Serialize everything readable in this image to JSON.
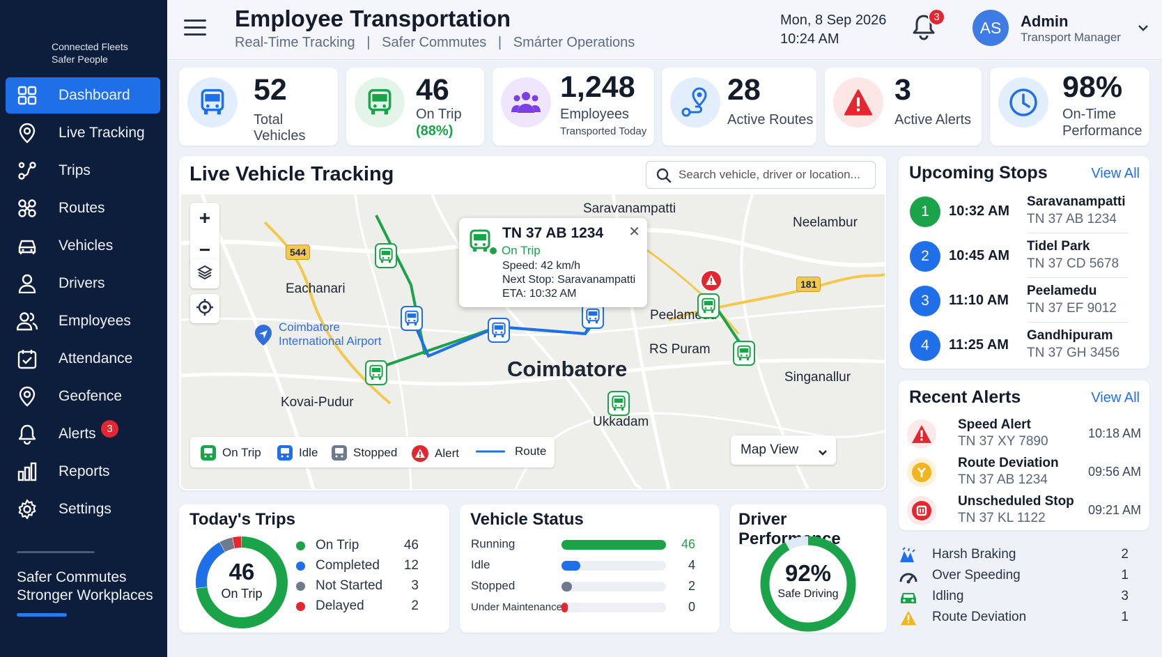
{
  "brand": {
    "line1": "Connected Fleets",
    "line2": "Safer People"
  },
  "sidebar": {
    "items": [
      {
        "label": "Dashboard",
        "icon": "dashboard-icon",
        "active": true
      },
      {
        "label": "Live Tracking",
        "icon": "location-pin-icon"
      },
      {
        "label": "Trips",
        "icon": "trips-icon"
      },
      {
        "label": "Routes",
        "icon": "routes-icon"
      },
      {
        "label": "Vehicles",
        "icon": "vehicle-icon"
      },
      {
        "label": "Drivers",
        "icon": "driver-icon"
      },
      {
        "label": "Employees",
        "icon": "employees-icon"
      },
      {
        "label": "Attendance",
        "icon": "attendance-icon"
      },
      {
        "label": "Geofence",
        "icon": "geofence-icon"
      },
      {
        "label": "Alerts",
        "icon": "bell-icon",
        "badge": "3"
      },
      {
        "label": "Reports",
        "icon": "reports-icon"
      },
      {
        "label": "Settings",
        "icon": "gear-icon"
      }
    ],
    "footer_line1": "Safer Commutes",
    "footer_line2": "Stronger Workplaces"
  },
  "header": {
    "title": "Employee Transportation",
    "subtitle": "Real-Time Tracking   |   Safer Commutes   |   Smárter Operations",
    "date": "Mon, 8 Sep 2026",
    "time": "10:24 AM",
    "notification_count": "3",
    "user_initials": "AS",
    "user_name": "Admin",
    "user_role": "Transport Manager"
  },
  "stats": [
    {
      "value": "52",
      "label": "Total Vehicles",
      "color": "#1f6fe8"
    },
    {
      "value": "46",
      "label": "On Trip",
      "sub": "(88%)",
      "color": "#1ba34a"
    },
    {
      "value": "1,248",
      "label": "Employees",
      "sub": "Transported Today",
      "color": "#7b3fe4"
    },
    {
      "value": "28",
      "label": "Active Routes",
      "color": "#1f6fe8"
    },
    {
      "value": "3",
      "label": "Active Alerts",
      "color": "#e3262f"
    },
    {
      "value": "98%",
      "label": "On-Time",
      "sub": "Performance",
      "color": "#1f6fe8"
    }
  ],
  "map_panel": {
    "title": "Live Vehicle Tracking",
    "search_placeholder": "Search vehicle, driver or location...",
    "places": [
      "Saravanampatti",
      "Neelambur",
      "Eachanari",
      "Peelamedu",
      "RS Puram",
      "Coimbatore",
      "Singanallur",
      "Kovai-Pudur",
      "Ukkadam"
    ],
    "airport_line1": "Coimbatore",
    "airport_line2": "International Airport",
    "road_badges": [
      "544",
      "181"
    ],
    "popup": {
      "vehicle": "TN 37 AB 1234",
      "status": "On Trip",
      "speed": "Speed: 42 km/h",
      "next_stop": "Next Stop: Saravanampatti",
      "eta": "ETA: 10:32 AM"
    },
    "legend": [
      "On Trip",
      "Idle",
      "Stopped",
      "Alert",
      "Route"
    ],
    "map_view_label": "Map View",
    "colors": {
      "on_trip": "#1ba34a",
      "idle": "#1f6fe8",
      "stopped": "#6f7a8c",
      "alert": "#e3262f"
    }
  },
  "upcoming_stops": {
    "title": "Upcoming Stops",
    "view_all": "View All",
    "items": [
      {
        "num": "1",
        "time": "10:32 AM",
        "place": "Saravanampatti",
        "vehicle": "TN 37 AB 1234",
        "color": "#1ba34a"
      },
      {
        "num": "2",
        "time": "10:45 AM",
        "place": "Tidel Park",
        "vehicle": "TN 37 CD 5678",
        "color": "#1f6fe8"
      },
      {
        "num": "3",
        "time": "11:10 AM",
        "place": "Peelamedu",
        "vehicle": "TN 37 EF 9012",
        "color": "#1f6fe8"
      },
      {
        "num": "4",
        "time": "11:25 AM",
        "place": "Gandhipuram",
        "vehicle": "TN 37 GH 3456",
        "color": "#1f6fe8"
      }
    ]
  },
  "recent_alerts": {
    "title": "Recent Alerts",
    "view_all": "View All",
    "items": [
      {
        "title": "Speed Alert",
        "vehicle": "TN 37 XY 7890",
        "time": "10:18 AM",
        "icon": "warning-icon"
      },
      {
        "title": "Route Deviation",
        "vehicle": "TN 37 AB 1234",
        "time": "09:56 AM",
        "icon": "route-deviation-icon"
      },
      {
        "title": "Unscheduled Stop",
        "vehicle": "TN 37 KL 1122",
        "time": "09:21 AM",
        "icon": "stop-icon"
      }
    ]
  },
  "todays_trips": {
    "title": "Today's Trips",
    "center_value": "46",
    "center_label": "On Trip",
    "rows": [
      {
        "label": "On Trip",
        "value": "46",
        "color": "#1ba34a"
      },
      {
        "label": "Completed",
        "value": "12",
        "color": "#1f6fe8"
      },
      {
        "label": "Not Started",
        "value": "3",
        "color": "#6f7a8c"
      },
      {
        "label": "Delayed",
        "value": "2",
        "color": "#e3262f"
      }
    ]
  },
  "vehicle_status": {
    "title": "Vehicle Status",
    "rows": [
      {
        "label": "Running",
        "value": "46",
        "fraction": 1.0,
        "color": "#1ba34a"
      },
      {
        "label": "Idle",
        "value": "4",
        "fraction": 0.18,
        "color": "#1f6fe8"
      },
      {
        "label": "Stopped",
        "value": "2",
        "fraction": 0.1,
        "color": "#6f7a8c"
      },
      {
        "label": "Under Maintenance",
        "value": "0",
        "fraction": 0.06,
        "color": "#e3262f"
      }
    ]
  },
  "driver_performance": {
    "title": "Driver Performance",
    "value": "92%",
    "label": "Safe Driving",
    "fraction": 0.92,
    "rows": [
      {
        "label": "Harsh Braking",
        "value": "2",
        "icon": "harsh-braking-icon"
      },
      {
        "label": "Over Speeding",
        "value": "1",
        "icon": "speedometer-icon"
      },
      {
        "label": "Idling",
        "value": "3",
        "icon": "idling-car-icon"
      },
      {
        "label": "Route Deviation",
        "value": "1",
        "icon": "warning-icon"
      }
    ]
  }
}
